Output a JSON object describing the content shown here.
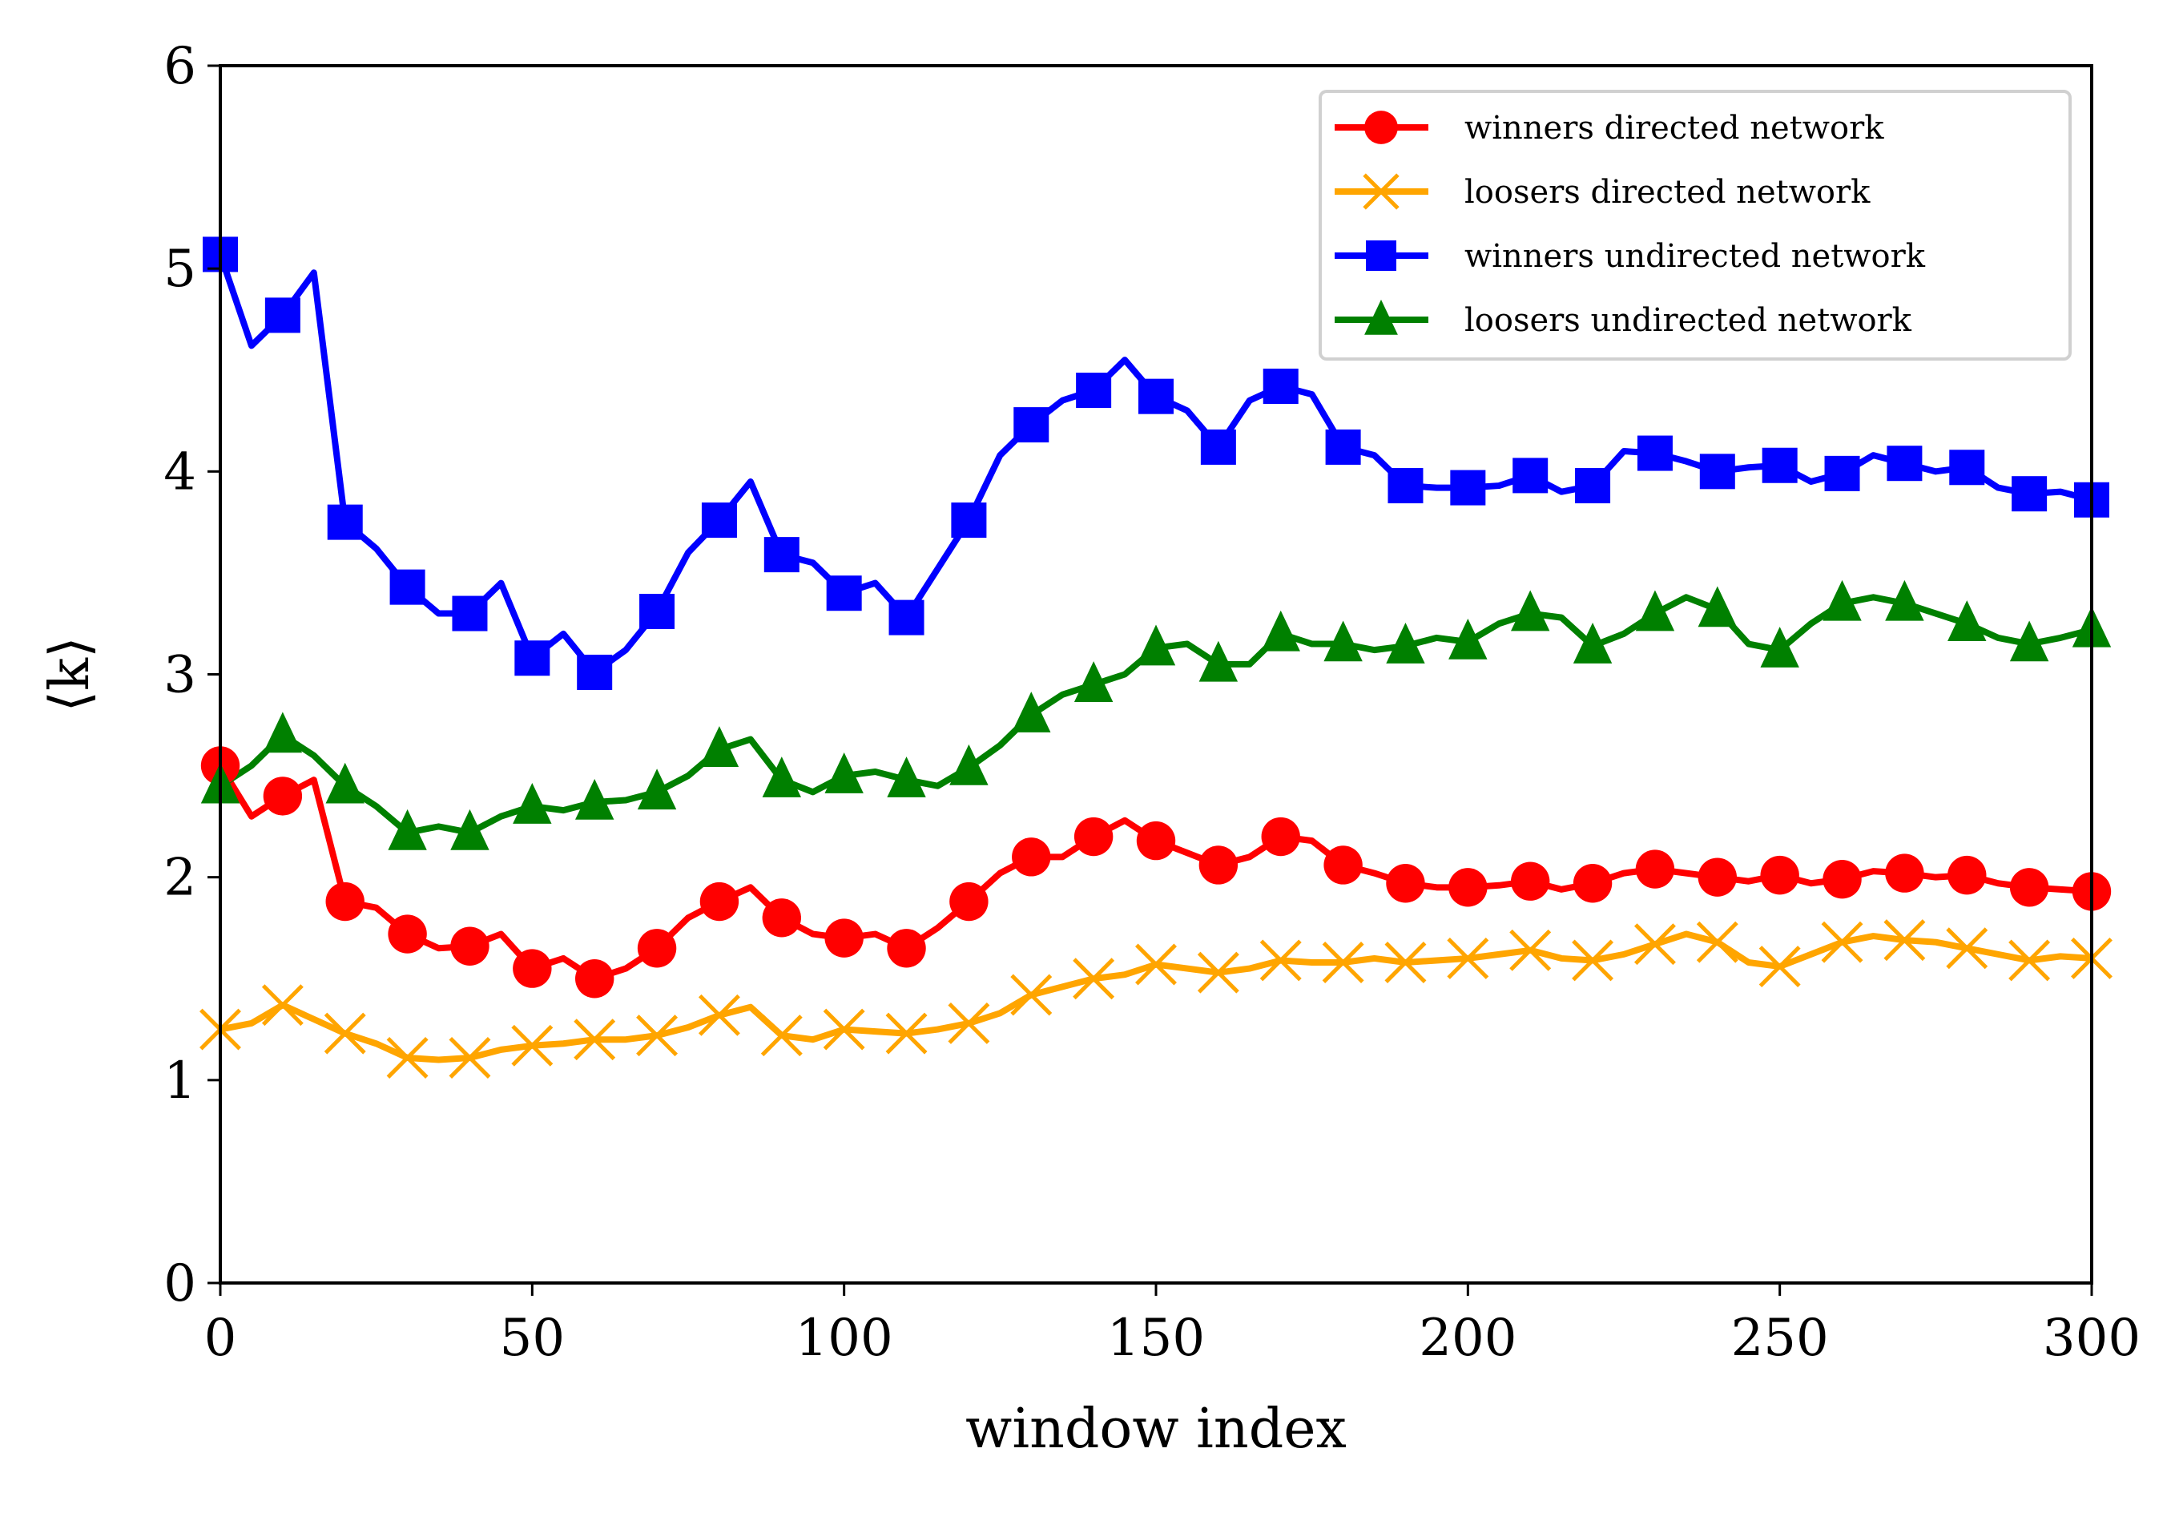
{
  "chart_data": {
    "type": "line",
    "title": "",
    "xlabel": "window index",
    "ylabel": "⟨k⟩",
    "xlim": [
      0,
      300
    ],
    "ylim": [
      0,
      6
    ],
    "xticks": [
      0,
      50,
      100,
      150,
      200,
      250,
      300
    ],
    "yticks": [
      0,
      1,
      2,
      3,
      4,
      5,
      6
    ],
    "grid": false,
    "legend_position": "top-right",
    "x": [
      0,
      5,
      10,
      15,
      20,
      25,
      30,
      35,
      40,
      45,
      50,
      55,
      60,
      65,
      70,
      75,
      80,
      85,
      90,
      95,
      100,
      105,
      110,
      115,
      120,
      125,
      130,
      135,
      140,
      145,
      150,
      155,
      160,
      165,
      170,
      175,
      180,
      185,
      190,
      195,
      200,
      205,
      210,
      215,
      220,
      225,
      230,
      235,
      240,
      245,
      250,
      255,
      260,
      265,
      270,
      275,
      280,
      285,
      290,
      295,
      300
    ],
    "series": [
      {
        "name": "winners directed network",
        "color": "#ff0000",
        "marker": "circle",
        "values": [
          2.55,
          2.3,
          2.4,
          2.48,
          1.88,
          1.85,
          1.72,
          1.65,
          1.66,
          1.72,
          1.55,
          1.6,
          1.5,
          1.55,
          1.65,
          1.8,
          1.88,
          1.95,
          1.8,
          1.72,
          1.7,
          1.72,
          1.65,
          1.75,
          1.88,
          2.02,
          2.1,
          2.1,
          2.2,
          2.28,
          2.18,
          2.12,
          2.06,
          2.1,
          2.2,
          2.18,
          2.06,
          2.02,
          1.97,
          1.95,
          1.95,
          1.96,
          1.98,
          1.94,
          1.97,
          2.02,
          2.04,
          2.02,
          2.0,
          1.98,
          2.01,
          1.97,
          1.99,
          2.03,
          2.02,
          2.0,
          2.01,
          1.97,
          1.95,
          1.94,
          1.93
        ]
      },
      {
        "name": "loosers directed network",
        "color": "#ffa500",
        "marker": "x",
        "values": [
          1.25,
          1.28,
          1.37,
          1.3,
          1.23,
          1.18,
          1.11,
          1.1,
          1.11,
          1.15,
          1.17,
          1.18,
          1.2,
          1.2,
          1.22,
          1.26,
          1.32,
          1.36,
          1.22,
          1.2,
          1.25,
          1.24,
          1.23,
          1.25,
          1.28,
          1.33,
          1.42,
          1.46,
          1.5,
          1.52,
          1.57,
          1.55,
          1.53,
          1.55,
          1.59,
          1.58,
          1.58,
          1.6,
          1.58,
          1.59,
          1.6,
          1.62,
          1.64,
          1.6,
          1.59,
          1.62,
          1.67,
          1.72,
          1.68,
          1.58,
          1.56,
          1.62,
          1.68,
          1.71,
          1.69,
          1.68,
          1.65,
          1.62,
          1.59,
          1.61,
          1.6
        ]
      },
      {
        "name": "winners undirected network",
        "color": "#0000ff",
        "marker": "square",
        "values": [
          5.07,
          4.62,
          4.77,
          4.98,
          3.75,
          3.62,
          3.43,
          3.3,
          3.3,
          3.45,
          3.08,
          3.2,
          3.01,
          3.12,
          3.31,
          3.6,
          3.76,
          3.95,
          3.59,
          3.55,
          3.4,
          3.45,
          3.28,
          3.52,
          3.76,
          4.08,
          4.23,
          4.35,
          4.4,
          4.55,
          4.37,
          4.3,
          4.12,
          4.35,
          4.42,
          4.38,
          4.12,
          4.08,
          3.93,
          3.92,
          3.92,
          3.93,
          3.98,
          3.9,
          3.93,
          4.1,
          4.09,
          4.05,
          4.0,
          4.02,
          4.03,
          3.95,
          3.99,
          4.08,
          4.04,
          4.0,
          4.02,
          3.92,
          3.89,
          3.9,
          3.86
        ]
      },
      {
        "name": "loosers undirected network",
        "color": "#008000",
        "marker": "triangle",
        "values": [
          2.45,
          2.55,
          2.7,
          2.6,
          2.45,
          2.35,
          2.22,
          2.25,
          2.22,
          2.3,
          2.35,
          2.33,
          2.37,
          2.38,
          2.42,
          2.5,
          2.63,
          2.68,
          2.48,
          2.42,
          2.5,
          2.52,
          2.48,
          2.45,
          2.54,
          2.65,
          2.8,
          2.9,
          2.95,
          3.0,
          3.13,
          3.15,
          3.05,
          3.05,
          3.2,
          3.15,
          3.15,
          3.12,
          3.14,
          3.18,
          3.16,
          3.25,
          3.3,
          3.28,
          3.14,
          3.2,
          3.3,
          3.38,
          3.32,
          3.15,
          3.12,
          3.25,
          3.35,
          3.38,
          3.35,
          3.3,
          3.25,
          3.18,
          3.15,
          3.18,
          3.22
        ]
      }
    ]
  }
}
